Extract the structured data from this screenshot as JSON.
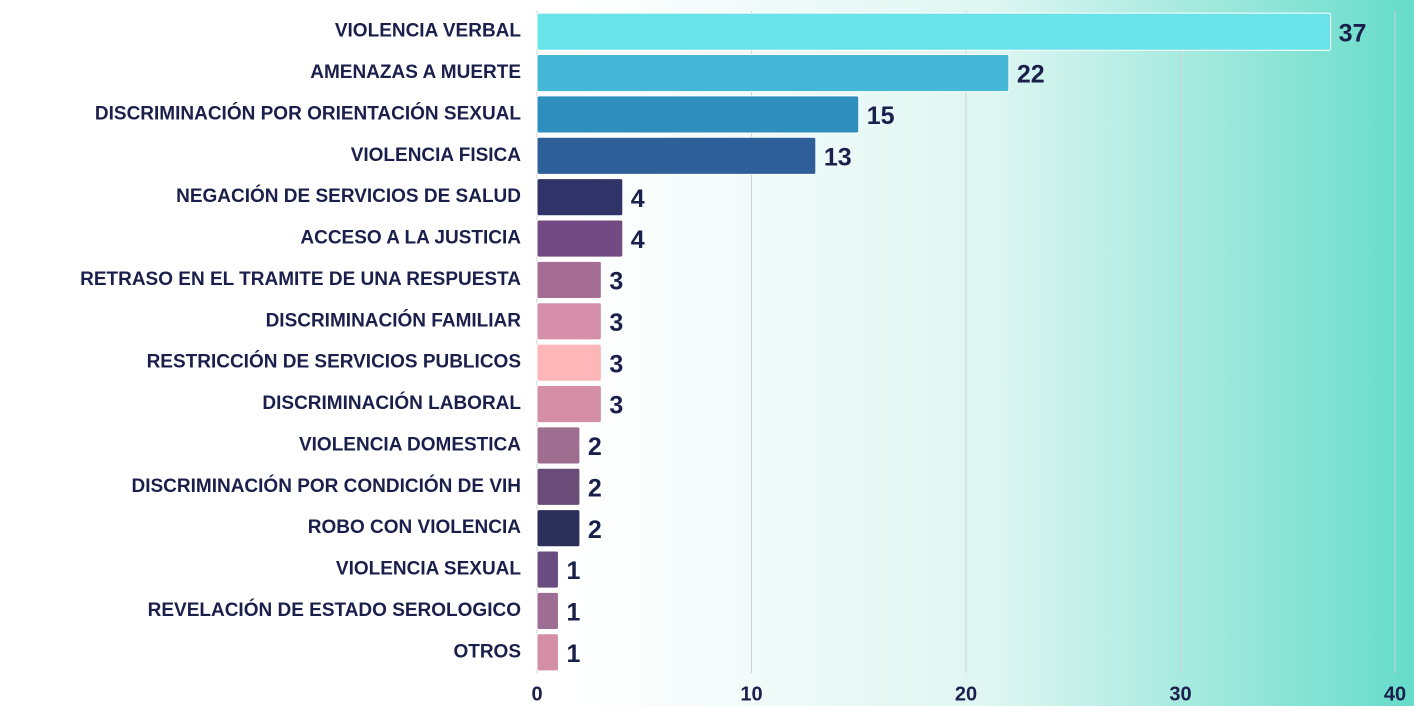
{
  "chart_data": {
    "type": "barh",
    "categories": [
      "VIOLENCIA VERBAL",
      "AMENAZAS A MUERTE",
      "DISCRIMINACIÓN POR ORIENTACIÓN SEXUAL",
      "VIOLENCIA FISICA",
      "NEGACIÓN DE SERVICIOS DE SALUD",
      "ACCESO A LA JUSTICIA",
      "RETRASO EN EL TRAMITE DE UNA RESPUESTA",
      "DISCRIMINACIÓN FAMILIAR",
      "RESTRICCIÓN DE SERVICIOS PUBLICOS",
      "DISCRIMINACIÓN LABORAL",
      "VIOLENCIA DOMESTICA",
      "DISCRIMINACIÓN POR CONDICIÓN DE VIH",
      "ROBO CON VIOLENCIA",
      "VIOLENCIA SEXUAL",
      "REVELACIÓN DE ESTADO SEROLOGICO",
      "OTROS"
    ],
    "values": [
      37,
      22,
      15,
      13,
      4,
      4,
      3,
      3,
      3,
      3,
      2,
      2,
      2,
      1,
      1,
      1
    ],
    "colors": [
      "#6ae3e8",
      "#44b8d6",
      "#2e8fbc",
      "#2f5f98",
      "#2f3368",
      "#744a82",
      "#a66d94",
      "#d68fa8",
      "#ffb6b9",
      "#d48ea6",
      "#9e6d90",
      "#6a4c78",
      "#2c2f5a",
      "#6a4c80",
      "#9e6d94",
      "#d48ea6"
    ],
    "xlim": [
      0,
      40
    ],
    "xticks": [
      0,
      10,
      20,
      30,
      40
    ],
    "grid": true
  }
}
